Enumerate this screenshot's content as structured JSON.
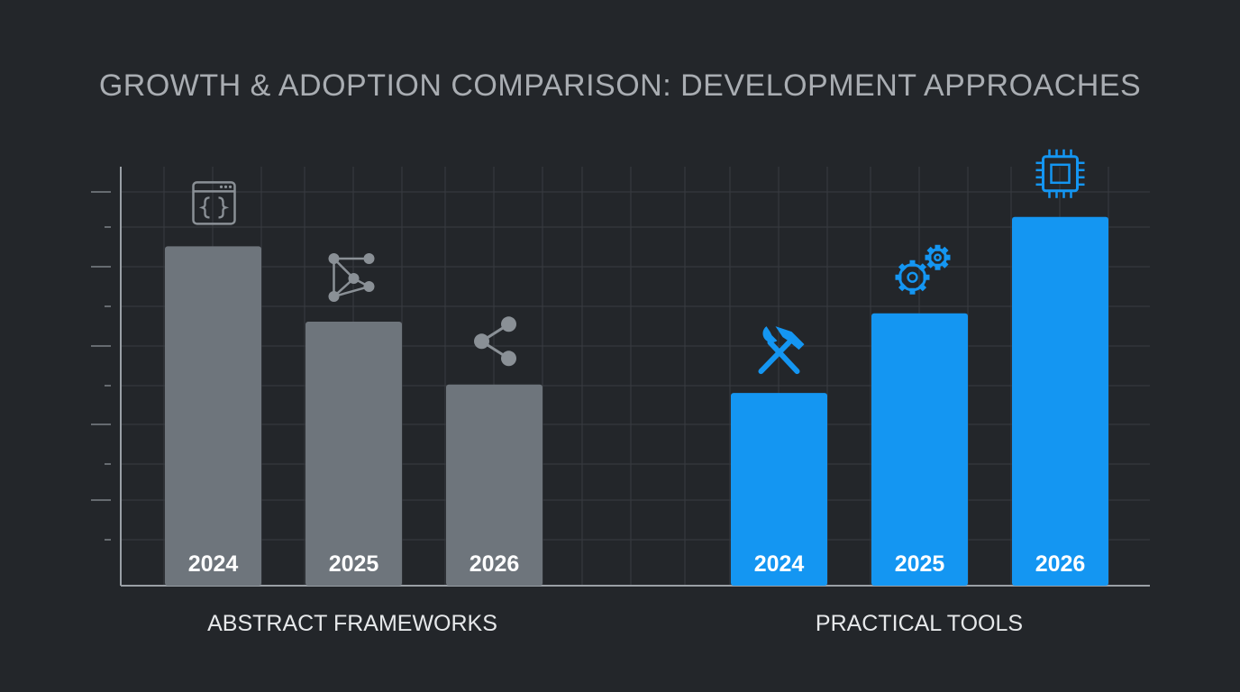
{
  "chart_data": {
    "type": "bar",
    "title": "GROWTH & ADOPTION COMPARISON: DEVELOPMENT APPROACHES",
    "xlabel": "",
    "ylabel": "",
    "ylim": [
      0,
      100
    ],
    "grid": true,
    "groups": [
      {
        "name": "ABSTRACT FRAMEWORKS",
        "color": "#6e757c",
        "bars": [
          {
            "category": "2024",
            "value": 81,
            "icon": "code-window-icon"
          },
          {
            "category": "2025",
            "value": 63,
            "icon": "node-graph-icon"
          },
          {
            "category": "2026",
            "value": 48,
            "icon": "share-nodes-icon"
          }
        ]
      },
      {
        "name": "PRACTICAL TOOLS",
        "color": "#1496f2",
        "bars": [
          {
            "category": "2024",
            "value": 46,
            "icon": "hammer-wrench-icon"
          },
          {
            "category": "2025",
            "value": 65,
            "icon": "gears-icon"
          },
          {
            "category": "2026",
            "value": 88,
            "icon": "cpu-chip-icon"
          }
        ]
      }
    ]
  }
}
